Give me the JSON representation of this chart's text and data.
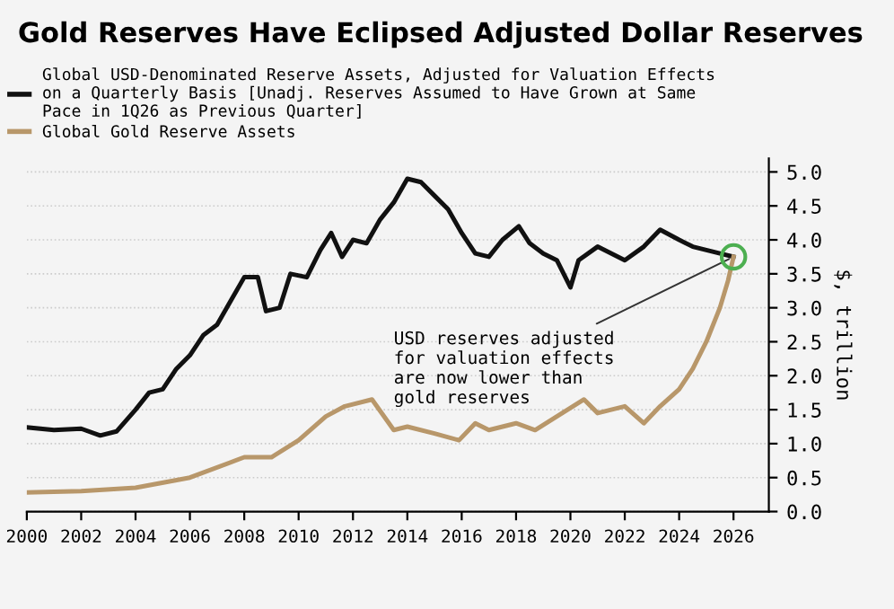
{
  "chart_data": {
    "type": "line",
    "title": "Gold Reserves Have Eclipsed Adjusted Dollar Reserves",
    "ylabel": "$, trillion",
    "legend": "top left",
    "grid": "y",
    "marker": "none",
    "line_style": "solid",
    "xlim": [
      2000,
      2027.3
    ],
    "xticks": [
      2000,
      2002,
      2004,
      2006,
      2008,
      2010,
      2012,
      2014,
      2016,
      2018,
      2020,
      2022,
      2024,
      2026
    ],
    "ylim": [
      0,
      5.2
    ],
    "yticks": [
      {
        "value": 0,
        "label": "0.0"
      },
      {
        "value": 0.5,
        "label": "0.5"
      },
      {
        "value": 1,
        "label": "1.0"
      },
      {
        "value": 1.5,
        "label": "1.5"
      },
      {
        "value": 2,
        "label": "2.0"
      },
      {
        "value": 2.5,
        "label": "2.5"
      },
      {
        "value": 3,
        "label": "3.0"
      },
      {
        "value": 3.5,
        "label": "3.5"
      },
      {
        "value": 4,
        "label": "4.0"
      },
      {
        "value": 4.5,
        "label": "4.5"
      },
      {
        "value": 5,
        "label": "5.0"
      }
    ],
    "annotations": [
      {
        "text": "USD reserves adjusted\nfor valuation effects\nare now lower than\ngold reserves",
        "x": 2026,
        "y": 3.75
      }
    ],
    "series": [
      {
        "name": "Global USD-Denominated Reserve Assets, Adjusted for Valuation Effects\non a Quarterly Basis [Unadj. Reserves Assumed to Have Grown at Same\nPace in 1Q26 as Previous Quarter]",
        "color": "#111111",
        "x": [
          2000,
          2001,
          2002,
          2002.7,
          2003.3,
          2004,
          2004.5,
          2005,
          2005.5,
          2006,
          2006.5,
          2007,
          2007.5,
          2008,
          2008.5,
          2008.8,
          2009.3,
          2009.7,
          2010.3,
          2010.8,
          2011.2,
          2011.6,
          2012,
          2012.5,
          2013,
          2013.5,
          2014,
          2014.5,
          2015,
          2015.5,
          2016,
          2016.5,
          2017,
          2017.5,
          2018.1,
          2018.5,
          2019,
          2019.5,
          2020,
          2020.3,
          2021,
          2022,
          2022.7,
          2023.3,
          2024,
          2024.5,
          2025,
          2025.5,
          2026
        ],
        "values": [
          1.24,
          1.2,
          1.22,
          1.12,
          1.18,
          1.5,
          1.75,
          1.8,
          2.1,
          2.3,
          2.6,
          2.75,
          3.1,
          3.45,
          3.45,
          2.95,
          3.0,
          3.5,
          3.45,
          3.85,
          4.1,
          3.75,
          4.0,
          3.95,
          4.3,
          4.55,
          4.9,
          4.85,
          4.65,
          4.45,
          4.1,
          3.8,
          3.75,
          4.0,
          4.2,
          3.95,
          3.8,
          3.7,
          3.3,
          3.7,
          3.9,
          3.7,
          3.9,
          4.15,
          4.0,
          3.9,
          3.85,
          3.8,
          3.75
        ]
      },
      {
        "name": "Global Gold Reserve Assets",
        "color": "#b8976a",
        "x": [
          2000,
          2002,
          2004,
          2006,
          2008,
          2009,
          2010,
          2011,
          2011.7,
          2012.7,
          2013.5,
          2014,
          2015,
          2015.9,
          2016.5,
          2017,
          2018,
          2018.7,
          2019.5,
          2020.5,
          2021,
          2022,
          2022.7,
          2023.3,
          2024,
          2024.5,
          2025,
          2025.5,
          2025.8,
          2026
        ],
        "values": [
          0.28,
          0.3,
          0.35,
          0.5,
          0.8,
          0.8,
          1.05,
          1.4,
          1.55,
          1.65,
          1.2,
          1.25,
          1.15,
          1.05,
          1.3,
          1.2,
          1.3,
          1.2,
          1.4,
          1.65,
          1.45,
          1.55,
          1.3,
          1.55,
          1.8,
          2.1,
          2.5,
          3.0,
          3.4,
          3.75
        ]
      }
    ]
  }
}
